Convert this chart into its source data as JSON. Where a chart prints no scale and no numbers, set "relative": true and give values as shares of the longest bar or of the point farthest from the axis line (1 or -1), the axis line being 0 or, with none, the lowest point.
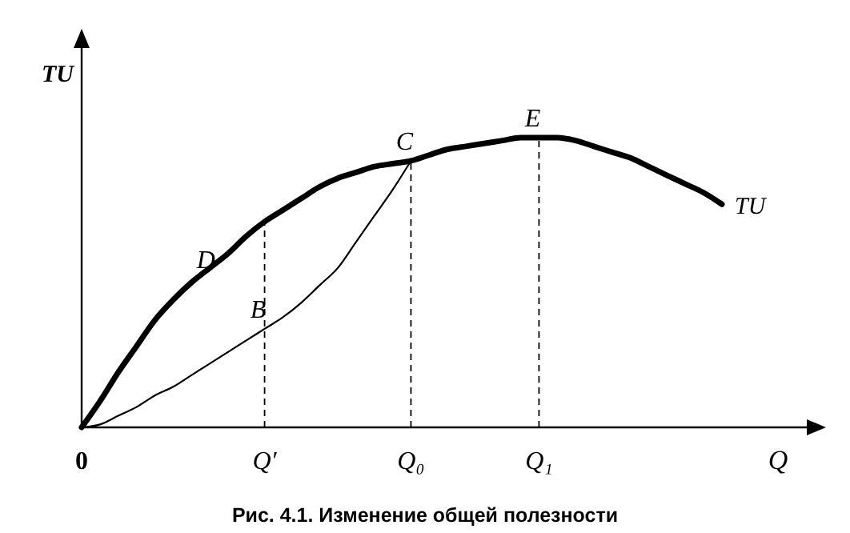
{
  "chart_data": {
    "type": "line",
    "title": "Рис. 4.1. Изменение общей полезности",
    "xlabel": "Q",
    "ylabel": "TU",
    "relative": true,
    "line_style": "solid",
    "marker": "none",
    "grid": false,
    "categories": [
      "0",
      null,
      null,
      null,
      null,
      null,
      null,
      null,
      null,
      null,
      "Q′",
      null,
      null,
      null,
      null,
      null,
      null,
      null,
      "Q₀",
      null,
      null,
      null,
      null,
      null,
      null,
      "Q₁",
      null,
      null,
      null,
      null,
      null,
      null,
      null,
      null,
      null,
      null
    ],
    "series": [
      {
        "name": "TU",
        "color": "#000000",
        "values": [
          0,
          0.09,
          0.19,
          0.28,
          0.37,
          0.44,
          0.5,
          0.55,
          0.6,
          0.66,
          0.71,
          0.75,
          0.79,
          0.83,
          0.86,
          0.88,
          0.9,
          0.91,
          0.92,
          0.94,
          0.96,
          0.97,
          0.98,
          0.99,
          1,
          1,
          1,
          0.99,
          0.97,
          0.95,
          0.93,
          0.9,
          0.87,
          0.84,
          0.81,
          0.77
        ]
      },
      {
        "color": "#000000",
        "values": [
          0,
          0.01,
          0.04,
          0.07,
          0.11,
          0.14,
          0.18,
          0.22,
          0.26,
          0.3,
          0.34,
          0.38,
          0.43,
          0.49,
          0.55,
          0.64,
          0.73,
          0.82,
          0.92,
          null,
          null,
          null,
          null,
          null,
          null,
          null,
          null,
          null,
          null,
          null,
          null,
          null,
          null,
          null,
          null,
          null
        ]
      }
    ],
    "ref_lines": [
      {
        "axis": "x",
        "value": "Q′",
        "line_style": "dashed"
      },
      {
        "axis": "x",
        "value": "Q₀",
        "line_style": "dashed"
      },
      {
        "axis": "x",
        "value": "Q₁",
        "line_style": "dashed"
      }
    ],
    "annotations": [
      {
        "text": "D",
        "y": 0.56
      },
      {
        "text": "B",
        "x": "Q′",
        "y": 0.34
      },
      {
        "text": "C",
        "x": "Q₀",
        "y": 0.92
      },
      {
        "text": "E",
        "x": "Q₁",
        "y": 1
      }
    ]
  }
}
